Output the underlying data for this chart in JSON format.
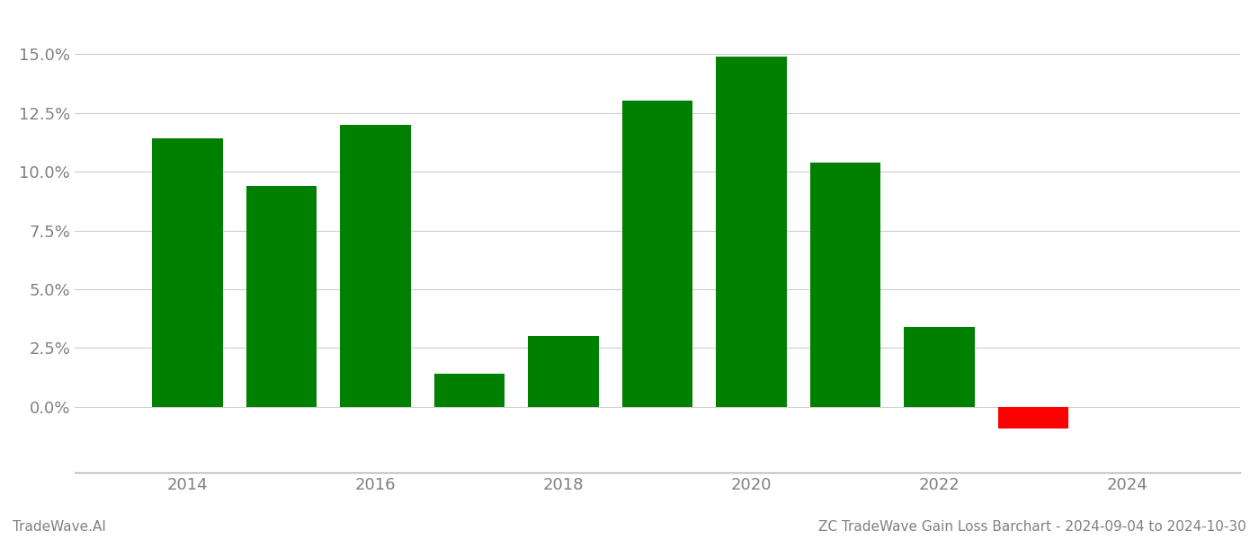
{
  "years": [
    2014,
    2015,
    2016,
    2017,
    2018,
    2019,
    2020,
    2021,
    2022,
    2023
  ],
  "values": [
    0.114,
    0.094,
    0.12,
    0.014,
    0.03,
    0.13,
    0.149,
    0.104,
    0.034,
    -0.009
  ],
  "bar_colors": [
    "#008000",
    "#008000",
    "#008000",
    "#008000",
    "#008000",
    "#008000",
    "#008000",
    "#008000",
    "#008000",
    "#ff0000"
  ],
  "ylim": [
    -0.028,
    0.165
  ],
  "yticks": [
    0.0,
    0.025,
    0.05,
    0.075,
    0.1,
    0.125,
    0.15
  ],
  "xlabel_years": [
    2014,
    2016,
    2018,
    2020,
    2022,
    2024
  ],
  "xlim": [
    2012.8,
    2025.2
  ],
  "grid_color": "#cccccc",
  "background_color": "#ffffff",
  "footer_left": "TradeWave.AI",
  "footer_right": "ZC TradeWave Gain Loss Barchart - 2024-09-04 to 2024-10-30",
  "bar_width": 0.75,
  "tick_label_color": "#808080",
  "footer_fontsize": 11,
  "tick_fontsize": 13
}
